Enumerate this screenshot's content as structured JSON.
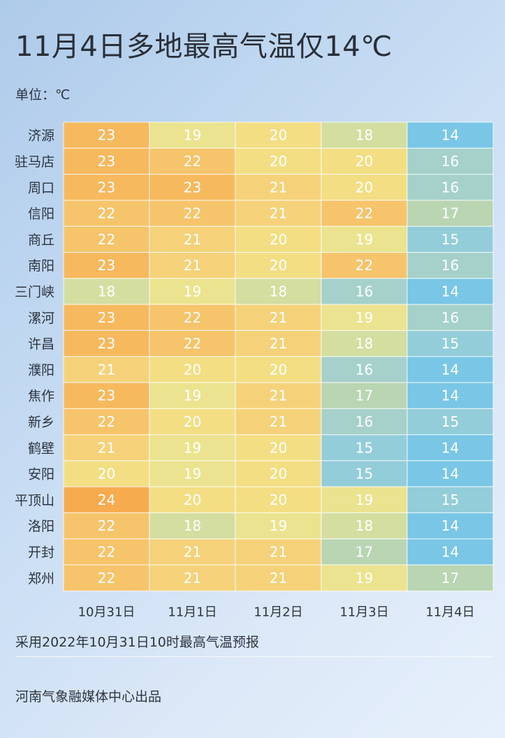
{
  "title": "11月4日多地最高气温仅14℃",
  "unit_label": "单位：℃",
  "footnote": "采用2022年10月31日10时最高气温预报",
  "credit": "河南气象融媒体中心出品",
  "colors": {
    "t14": "#79c6e6",
    "t15": "#93cdd9",
    "t16": "#a5d1ca",
    "t17": "#b9d5b2",
    "t18": "#d3dea0",
    "t19": "#ebe38f",
    "t20": "#f3de84",
    "t21": "#f5d27a",
    "t22": "#f6c46b",
    "t23": "#f7b95e",
    "t24": "#f7ab4f"
  },
  "chart_data": {
    "type": "heatmap",
    "x": [
      "10月31日",
      "11月1日",
      "11月2日",
      "11月3日",
      "11月4日"
    ],
    "y": [
      "济源",
      "驻马店",
      "周口",
      "信阳",
      "商丘",
      "南阳",
      "三门峡",
      "漯河",
      "许昌",
      "濮阳",
      "焦作",
      "新乡",
      "鹤壁",
      "安阳",
      "平顶山",
      "洛阳",
      "开封",
      "郑州"
    ],
    "values": [
      [
        23,
        19,
        20,
        18,
        14
      ],
      [
        23,
        22,
        20,
        20,
        16
      ],
      [
        23,
        23,
        21,
        20,
        16
      ],
      [
        22,
        22,
        21,
        22,
        17
      ],
      [
        22,
        21,
        20,
        19,
        15
      ],
      [
        23,
        21,
        20,
        22,
        16
      ],
      [
        18,
        19,
        18,
        16,
        14
      ],
      [
        23,
        22,
        21,
        19,
        16
      ],
      [
        23,
        22,
        21,
        18,
        15
      ],
      [
        21,
        20,
        20,
        16,
        14
      ],
      [
        23,
        19,
        21,
        17,
        14
      ],
      [
        22,
        20,
        21,
        16,
        15
      ],
      [
        21,
        19,
        20,
        15,
        14
      ],
      [
        20,
        19,
        20,
        15,
        14
      ],
      [
        24,
        20,
        20,
        19,
        15
      ],
      [
        22,
        18,
        19,
        18,
        14
      ],
      [
        22,
        21,
        21,
        17,
        14
      ],
      [
        22,
        21,
        21,
        19,
        17
      ]
    ]
  }
}
